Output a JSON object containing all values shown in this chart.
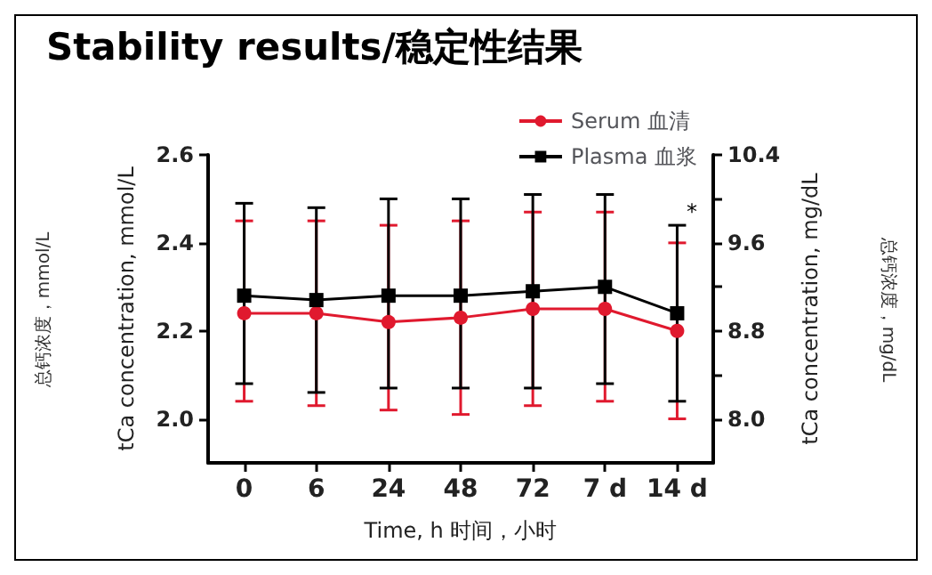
{
  "chart_data": {
    "type": "line",
    "title": "Stability results/稳定性结果",
    "xlabel": "Time, h 时间，小时",
    "ylabel": "tCa concentration, mmol/L",
    "y2label": "tCa concentration, mg/dL",
    "categories": [
      "0",
      "6",
      "24",
      "48",
      "72",
      "7 d",
      "14 d"
    ],
    "series": [
      {
        "name": "Serum 血清",
        "color": "#e0192e",
        "marker": "circle",
        "values": [
          2.24,
          2.24,
          2.22,
          2.23,
          2.25,
          2.25,
          2.2
        ],
        "errors": [
          [
            2.04,
            2.45
          ],
          [
            2.03,
            2.45
          ],
          [
            2.02,
            2.44
          ],
          [
            2.01,
            2.45
          ],
          [
            2.03,
            2.47
          ],
          [
            2.04,
            2.47
          ],
          [
            2.0,
            2.4
          ]
        ]
      },
      {
        "name": "Plasma 血浆",
        "color": "#000000",
        "marker": "square",
        "values": [
          2.28,
          2.27,
          2.28,
          2.28,
          2.29,
          2.3,
          2.24
        ],
        "errors": [
          [
            2.08,
            2.49
          ],
          [
            2.06,
            2.48
          ],
          [
            2.07,
            2.5
          ],
          [
            2.07,
            2.5
          ],
          [
            2.07,
            2.51
          ],
          [
            2.08,
            2.51
          ],
          [
            2.04,
            2.44
          ]
        ]
      }
    ],
    "ylim": [
      1.9,
      2.6
    ],
    "yticks": [
      {
        "value": 2,
        "label": "2.0"
      },
      2.2,
      2.4,
      2.6
    ],
    "y2lim": [
      7.6,
      10.4
    ],
    "y2ticks": [
      {
        "value": 8,
        "label": "8.0"
      },
      {
        "value": 8.4,
        "label": null
      },
      8.8,
      {
        "value": 9.2,
        "label": null
      },
      9.6,
      {
        "value": 10,
        "label": null
      },
      10.4
    ],
    "annotations": [
      "总钙浓度，mmol/L",
      "总钙浓度，mg/dL",
      "*"
    ],
    "legend": "top right",
    "grid": false
  }
}
